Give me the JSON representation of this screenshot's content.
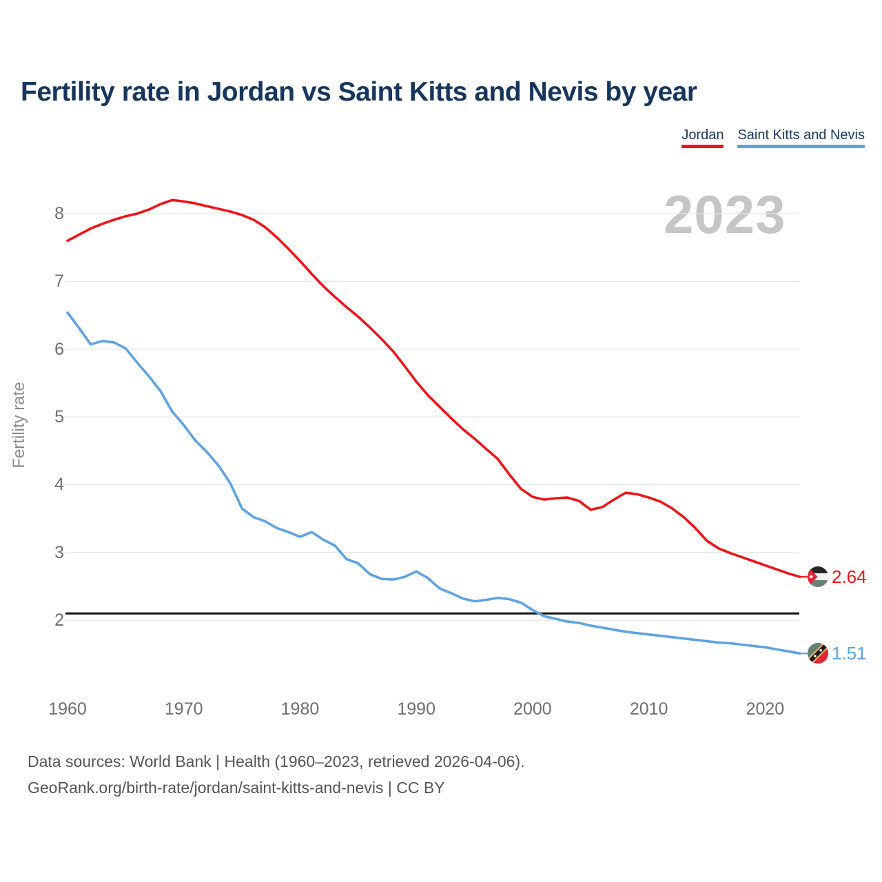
{
  "title": "Fertility rate in Jordan vs Saint Kitts and Nevis by year",
  "watermark": "2023",
  "legend": {
    "items": [
      {
        "label": "Jordan",
        "color": "#ee1519"
      },
      {
        "label": "Saint Kitts and Nevis",
        "color": "#5ea3e2"
      }
    ]
  },
  "footer": {
    "line1": "Data sources: World Bank | Health (1960–2023, retrieved 2026-04-06).",
    "line2": "GeoRank.org/birth-rate/jordan/saint-kitts-and-nevis | CC BY"
  },
  "chart_data": {
    "type": "line",
    "title": "Fertility rate in Jordan vs Saint Kitts and Nevis by year",
    "xlabel": "",
    "ylabel": "Fertility rate",
    "x_range": [
      1960,
      2023
    ],
    "ylim": [
      1.3,
      8.3
    ],
    "grid": true,
    "legend_position": "top-right",
    "y_ticks": [
      2,
      3,
      4,
      5,
      6,
      7,
      8
    ],
    "x_ticks": [
      1960,
      1970,
      1980,
      1990,
      2000,
      2010,
      2020
    ],
    "reference_line": {
      "value": 2.1,
      "color": "#111111"
    },
    "years": [
      1960,
      1961,
      1962,
      1963,
      1964,
      1965,
      1966,
      1967,
      1968,
      1969,
      1970,
      1971,
      1972,
      1973,
      1974,
      1975,
      1976,
      1977,
      1978,
      1979,
      1980,
      1981,
      1982,
      1983,
      1984,
      1985,
      1986,
      1987,
      1988,
      1989,
      1990,
      1991,
      1992,
      1993,
      1994,
      1995,
      1996,
      1997,
      1998,
      1999,
      2000,
      2001,
      2002,
      2003,
      2004,
      2005,
      2006,
      2007,
      2008,
      2009,
      2010,
      2011,
      2012,
      2013,
      2014,
      2015,
      2016,
      2017,
      2018,
      2019,
      2020,
      2021,
      2022,
      2023
    ],
    "series": [
      {
        "name": "Jordan",
        "color": "#ee1519",
        "end_label": "2.64",
        "values": [
          7.6,
          7.69,
          7.78,
          7.85,
          7.91,
          7.96,
          8.0,
          8.06,
          8.14,
          8.2,
          8.18,
          8.15,
          8.11,
          8.07,
          8.03,
          7.98,
          7.91,
          7.8,
          7.65,
          7.48,
          7.3,
          7.11,
          6.93,
          6.77,
          6.62,
          6.48,
          6.32,
          6.15,
          5.97,
          5.75,
          5.52,
          5.32,
          5.15,
          4.98,
          4.82,
          4.68,
          4.53,
          4.38,
          4.15,
          3.94,
          3.82,
          3.78,
          3.8,
          3.81,
          3.76,
          3.63,
          3.67,
          3.78,
          3.88,
          3.86,
          3.81,
          3.75,
          3.65,
          3.52,
          3.36,
          3.17,
          3.06,
          2.99,
          2.93,
          2.87,
          2.81,
          2.75,
          2.69,
          2.64
        ]
      },
      {
        "name": "Saint Kitts and Nevis",
        "color": "#5ea3e2",
        "end_label": "1.51",
        "values": [
          6.54,
          6.31,
          6.07,
          6.12,
          6.1,
          6.01,
          5.8,
          5.6,
          5.38,
          5.08,
          4.88,
          4.65,
          4.48,
          4.28,
          4.02,
          3.65,
          3.52,
          3.46,
          3.36,
          3.3,
          3.23,
          3.3,
          3.19,
          3.1,
          2.9,
          2.84,
          2.68,
          2.61,
          2.6,
          2.64,
          2.72,
          2.62,
          2.47,
          2.4,
          2.32,
          2.28,
          2.3,
          2.33,
          2.31,
          2.26,
          2.15,
          2.06,
          2.02,
          1.98,
          1.96,
          1.92,
          1.89,
          1.86,
          1.83,
          1.81,
          1.79,
          1.77,
          1.75,
          1.73,
          1.71,
          1.69,
          1.67,
          1.66,
          1.64,
          1.62,
          1.6,
          1.57,
          1.54,
          1.51
        ]
      }
    ]
  }
}
